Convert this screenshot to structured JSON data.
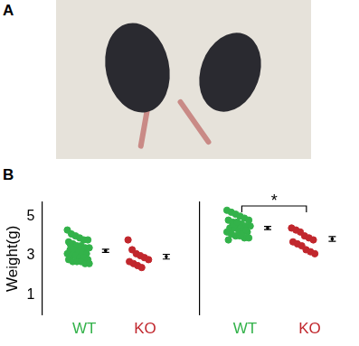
{
  "panel_labels": [
    "A",
    "B"
  ],
  "chart_data": [
    {
      "type": "scatter",
      "categories": [
        "WT",
        "KO"
      ],
      "colors": [
        "#33b24a",
        "#c1272d"
      ],
      "values": [
        [
          4.3,
          4.1,
          4.0,
          3.9,
          3.8,
          3.8,
          3.7,
          3.6,
          3.5,
          3.5,
          3.4,
          3.4,
          3.3,
          3.3,
          3.2,
          3.2,
          3.1,
          3.1,
          3.0,
          3.0,
          2.9,
          2.9,
          2.8,
          2.8,
          2.7,
          2.7,
          2.7,
          2.6,
          2.6,
          3.6
        ],
        [
          3.8,
          3.3,
          3.1,
          3.0,
          2.9,
          2.8,
          2.7,
          2.6,
          2.5,
          2.4
        ]
      ],
      "mean": [
        3.25,
        2.95
      ],
      "error": [
        0.08,
        0.12
      ],
      "y_label": "Weight(g)",
      "ylim": [
        0,
        5.7
      ],
      "yticks": [
        1,
        3,
        5
      ],
      "grid": false
    },
    {
      "type": "scatter",
      "categories": [
        "WT",
        "KO"
      ],
      "colors": [
        "#33b24a",
        "#c1272d"
      ],
      "values": [
        [
          5.3,
          5.2,
          5.1,
          5.0,
          4.9,
          4.8,
          4.8,
          4.7,
          4.6,
          4.6,
          4.5,
          4.5,
          4.4,
          4.4,
          4.3,
          4.3,
          4.2,
          4.2,
          4.1,
          4.0,
          4.0,
          3.9,
          3.9,
          3.8,
          4.6,
          4.7,
          4.1,
          4.3
        ],
        [
          4.4,
          4.3,
          4.2,
          4.0,
          3.9,
          3.8,
          3.7,
          3.6,
          3.5,
          3.3,
          3.2,
          3.1
        ]
      ],
      "mean": [
        4.4,
        3.85
      ],
      "error": [
        0.08,
        0.12
      ],
      "ylim": [
        0,
        5.7
      ],
      "yticks": [
        1,
        3,
        5
      ],
      "grid": false,
      "tick_labels": "x",
      "annotations": [
        {
          "text": "*",
          "between": [
            "WT",
            "KO"
          ]
        }
      ]
    }
  ]
}
